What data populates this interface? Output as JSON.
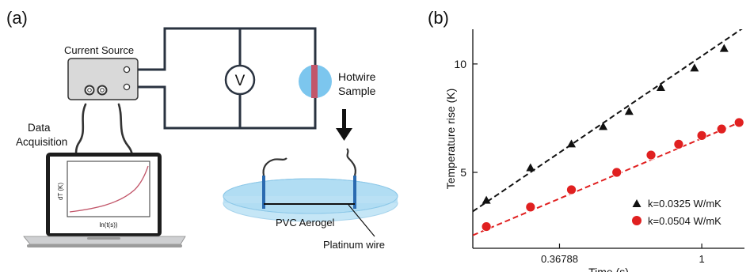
{
  "panel_a": {
    "label": "(a)",
    "current_source_label": "Current Source",
    "voltmeter_symbol": "V",
    "hotwire_label_line1": "Hotwire",
    "hotwire_label_line2": "Sample",
    "data_acq_line1": "Data",
    "data_acq_line2": "Acquisition",
    "inset_ylabel": "dT (K)",
    "inset_xlabel": "ln(t(s))",
    "aerogel_label": "PVC Aerogel",
    "platinum_label": "Platinum wire",
    "colors": {
      "aerogel": "#a9d9f1",
      "hotwire_blob": "#7cc6ee",
      "wire": "#c2566a",
      "curve": "#c2566a"
    },
    "icons": [
      "laptop-icon",
      "down-arrow-icon",
      "voltmeter-icon"
    ]
  },
  "chart_data": {
    "type": "scatter",
    "title": "",
    "panel_label": "(b)",
    "xlabel": "Time (s)",
    "ylabel": "Temperature rise (K)",
    "xscale": "log",
    "xlim": [
      0.2,
      1.35
    ],
    "ylim": [
      1.5,
      11.6
    ],
    "xticks": [
      0.36788,
      1
    ],
    "xtick_labels": [
      "0.36788",
      "1"
    ],
    "yticks": [
      5,
      10
    ],
    "ytick_labels": [
      "5",
      "10"
    ],
    "grid": false,
    "legend_position": "bottom-right",
    "series": [
      {
        "name": "k=0.0325 W/mK",
        "marker": "triangle",
        "color": "#111111",
        "x": [
          0.22,
          0.3,
          0.4,
          0.5,
          0.6,
          0.75,
          0.95,
          1.17
        ],
        "y": [
          3.7,
          5.2,
          6.3,
          7.1,
          7.8,
          8.9,
          9.8,
          10.7
        ],
        "fit": {
          "x": [
            0.2,
            1.35
          ],
          "y": [
            3.2,
            11.7
          ]
        }
      },
      {
        "name": "k=0.0504 W/mK",
        "marker": "circle",
        "color": "#e02020",
        "x": [
          0.22,
          0.3,
          0.4,
          0.55,
          0.7,
          0.85,
          1.0,
          1.15,
          1.3
        ],
        "y": [
          2.5,
          3.4,
          4.2,
          5.0,
          5.8,
          6.3,
          6.7,
          7.0,
          7.3
        ],
        "fit": {
          "x": [
            0.2,
            1.35
          ],
          "y": [
            2.1,
            7.4
          ]
        }
      }
    ]
  }
}
